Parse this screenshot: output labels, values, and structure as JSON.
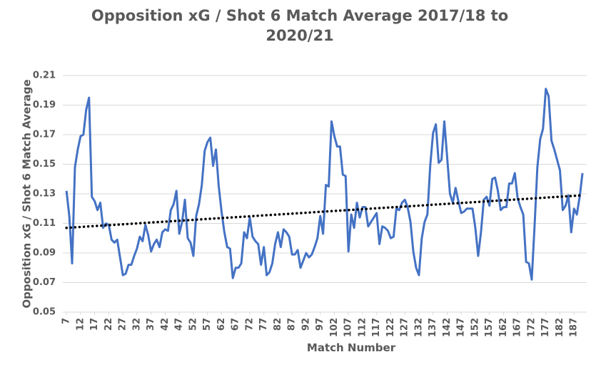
{
  "chart_data": {
    "type": "line",
    "title": "Opposition xG / Shot 6 Match Average 2017/18 to 2020/21",
    "x_label": "Match Number",
    "y_label": "Opposition xG / Shot 6 Match Average",
    "x": [
      7,
      8,
      9,
      10,
      11,
      12,
      13,
      14,
      15,
      16,
      17,
      18,
      19,
      20,
      21,
      22,
      23,
      24,
      25,
      26,
      27,
      28,
      29,
      30,
      31,
      32,
      33,
      34,
      35,
      36,
      37,
      38,
      39,
      40,
      41,
      42,
      43,
      44,
      45,
      46,
      47,
      48,
      49,
      50,
      51,
      52,
      53,
      54,
      55,
      56,
      57,
      58,
      59,
      60,
      61,
      62,
      63,
      64,
      65,
      66,
      67,
      68,
      69,
      70,
      71,
      72,
      73,
      74,
      75,
      76,
      77,
      78,
      79,
      80,
      81,
      82,
      83,
      84,
      85,
      86,
      87,
      88,
      89,
      90,
      91,
      92,
      93,
      94,
      95,
      96,
      97,
      98,
      99,
      100,
      101,
      102,
      103,
      104,
      105,
      106,
      107,
      108,
      109,
      110,
      111,
      112,
      113,
      114,
      115,
      116,
      117,
      118,
      119,
      120,
      121,
      122,
      123,
      124,
      125,
      126,
      127,
      128,
      129,
      130,
      131,
      132,
      133,
      134,
      135,
      136,
      137,
      138,
      139,
      140,
      141,
      142,
      143,
      144,
      145,
      146,
      147,
      148,
      149,
      150,
      151,
      152,
      153,
      154,
      155,
      156,
      157,
      158,
      159,
      160,
      161,
      162,
      163,
      164,
      165,
      166,
      167,
      168,
      169,
      170,
      171,
      172,
      173,
      174,
      175,
      176,
      177,
      178,
      179,
      180,
      181,
      182,
      183,
      184,
      185,
      186,
      187,
      188,
      189,
      190
    ],
    "series": [
      {
        "color": "#4472c4",
        "values": [
          0.132,
          0.115,
          0.083,
          0.148,
          0.16,
          0.169,
          0.17,
          0.187,
          0.195,
          0.128,
          0.125,
          0.119,
          0.124,
          0.107,
          0.11,
          0.109,
          0.099,
          0.097,
          0.099,
          0.087,
          0.075,
          0.076,
          0.082,
          0.082,
          0.088,
          0.093,
          0.101,
          0.098,
          0.109,
          0.102,
          0.091,
          0.096,
          0.099,
          0.094,
          0.104,
          0.106,
          0.105,
          0.119,
          0.123,
          0.132,
          0.103,
          0.111,
          0.126,
          0.1,
          0.097,
          0.088,
          0.115,
          0.123,
          0.136,
          0.159,
          0.165,
          0.168,
          0.149,
          0.16,
          0.135,
          0.118,
          0.104,
          0.094,
          0.093,
          0.073,
          0.08,
          0.08,
          0.083,
          0.104,
          0.1,
          0.114,
          0.101,
          0.098,
          0.096,
          0.082,
          0.094,
          0.075,
          0.077,
          0.083,
          0.096,
          0.104,
          0.094,
          0.106,
          0.104,
          0.101,
          0.089,
          0.089,
          0.092,
          0.08,
          0.085,
          0.09,
          0.087,
          0.089,
          0.094,
          0.1,
          0.115,
          0.103,
          0.136,
          0.135,
          0.179,
          0.169,
          0.162,
          0.162,
          0.143,
          0.142,
          0.091,
          0.116,
          0.107,
          0.124,
          0.114,
          0.121,
          0.121,
          0.108,
          0.111,
          0.114,
          0.117,
          0.096,
          0.108,
          0.107,
          0.105,
          0.1,
          0.101,
          0.12,
          0.119,
          0.124,
          0.126,
          0.121,
          0.111,
          0.091,
          0.08,
          0.075,
          0.1,
          0.111,
          0.116,
          0.149,
          0.171,
          0.177,
          0.151,
          0.153,
          0.179,
          0.155,
          0.13,
          0.124,
          0.134,
          0.125,
          0.117,
          0.118,
          0.12,
          0.12,
          0.12,
          0.107,
          0.088,
          0.104,
          0.126,
          0.128,
          0.122,
          0.14,
          0.141,
          0.132,
          0.119,
          0.121,
          0.121,
          0.137,
          0.137,
          0.144,
          0.127,
          0.121,
          0.116,
          0.084,
          0.083,
          0.072,
          0.108,
          0.148,
          0.167,
          0.174,
          0.201,
          0.196,
          0.166,
          0.16,
          0.153,
          0.146,
          0.119,
          0.122,
          0.129,
          0.104,
          0.12,
          0.116,
          0.128,
          0.144
        ]
      }
    ],
    "trendline": {
      "x": [
        7,
        190
      ],
      "values": [
        0.107,
        0.129
      ],
      "color": "#000000"
    },
    "xlim": [
      5.7,
      191.5
    ],
    "xticks": [
      7,
      12,
      17,
      22,
      27,
      32,
      37,
      42,
      47,
      52,
      57,
      62,
      67,
      72,
      77,
      82,
      87,
      92,
      97,
      102,
      107,
      112,
      117,
      122,
      127,
      132,
      137,
      142,
      147,
      152,
      157,
      162,
      167,
      172,
      177,
      182,
      187
    ],
    "ylim": [
      0.05,
      0.21
    ],
    "yticks": [
      0.05,
      0.07,
      0.09,
      0.11,
      0.13,
      0.15,
      0.17,
      0.19,
      0.21
    ],
    "grid": true
  }
}
